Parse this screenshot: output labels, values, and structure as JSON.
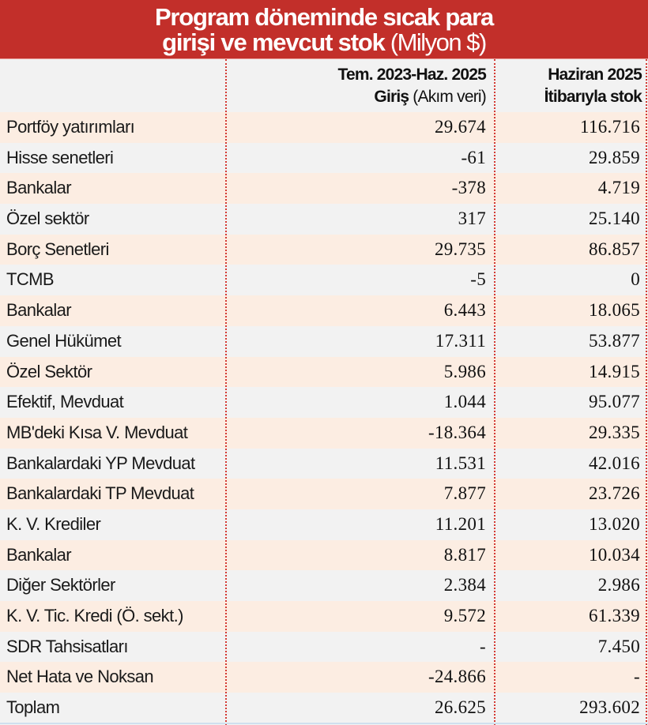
{
  "title": {
    "line1": "Program döneminde sıcak para",
    "line2_bold": "girişi ve mevcut stok",
    "line2_light": " (Milyon $)"
  },
  "columns": {
    "col1": {
      "line1": "Tem. 2023-Haz. 2025",
      "line2_bold": "Giriş",
      "line2_light": " (Akım veri)"
    },
    "col2": {
      "line1": "Haziran 2025",
      "line2": "İtibarıyla stok"
    }
  },
  "colors": {
    "header_red": "#c22f2a",
    "row_peach": "#fcede2",
    "row_gray": "#f2f2f2",
    "divider_red": "#d43a33"
  },
  "rows": [
    {
      "label": "Portföy yatırımları",
      "inflow": "29.674",
      "stock": "116.716"
    },
    {
      "label": "Hisse senetleri",
      "inflow": "-61",
      "stock": "29.859"
    },
    {
      "label": "Bankalar",
      "inflow": "-378",
      "stock": "4.719"
    },
    {
      "label": "Özel sektör",
      "inflow": "317",
      "stock": "25.140"
    },
    {
      "label": "Borç Senetleri",
      "inflow": "29.735",
      "stock": "86.857"
    },
    {
      "label": "TCMB",
      "inflow": "-5",
      "stock": "0"
    },
    {
      "label": "Bankalar",
      "inflow": "6.443",
      "stock": "18.065"
    },
    {
      "label": "Genel Hükümet",
      "inflow": "17.311",
      "stock": "53.877"
    },
    {
      "label": "Özel Sektör",
      "inflow": "5.986",
      "stock": "14.915"
    },
    {
      "label": "Efektif, Mevduat",
      "inflow": "1.044",
      "stock": "95.077"
    },
    {
      "label": "MB'deki Kısa V. Mevduat",
      "inflow": "-18.364",
      "stock": "29.335"
    },
    {
      "label": "Bankalardaki YP Mevduat",
      "inflow": "11.531",
      "stock": "42.016"
    },
    {
      "label": "Bankalardaki TP Mevduat",
      "inflow": "7.877",
      "stock": "23.726"
    },
    {
      "label": "K. V. Krediler",
      "inflow": "11.201",
      "stock": "13.020"
    },
    {
      "label": "Bankalar",
      "inflow": "8.817",
      "stock": "10.034"
    },
    {
      "label": "Diğer Sektörler",
      "inflow": "2.384",
      "stock": "2.986"
    },
    {
      "label": "K. V. Tic. Kredi (Ö. sekt.)",
      "inflow": "9.572",
      "stock": "61.339"
    },
    {
      "label": "SDR Tahsisatları",
      "inflow": "-",
      "stock": "7.450"
    },
    {
      "label": "Net Hata ve Noksan",
      "inflow": "-24.866",
      "stock": "-"
    },
    {
      "label": "Toplam",
      "inflow": "26.625",
      "stock": "293.602"
    }
  ]
}
